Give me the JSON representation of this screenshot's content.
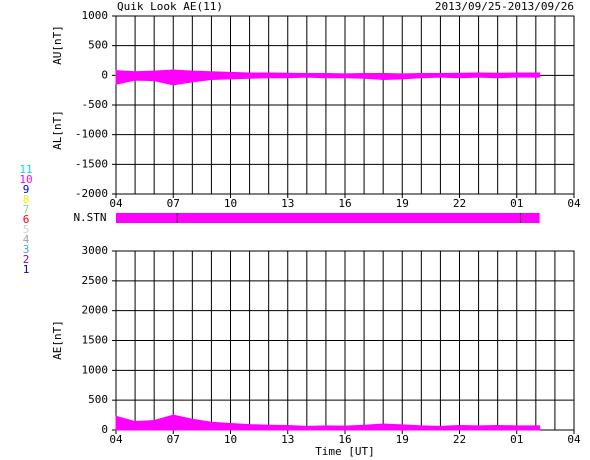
{
  "title": "Quik Look AE(11)",
  "period": "2013/09/25-2013/09/26",
  "legend": [
    {
      "label": "11",
      "color": "#00e0e0"
    },
    {
      "label": "10",
      "color": "#ff00ff"
    },
    {
      "label": "9",
      "color": "#0000ff"
    },
    {
      "label": "8",
      "color": "#f0f000"
    },
    {
      "label": "7",
      "color": "#80e080"
    },
    {
      "label": "6",
      "color": "#ff0000"
    },
    {
      "label": "5",
      "color": "#d0d0d0"
    },
    {
      "label": "4",
      "color": "#a0a0a0"
    },
    {
      "label": "3",
      "color": "#40b0b0"
    },
    {
      "label": "2",
      "color": "#a000a0"
    },
    {
      "label": "1",
      "color": "#0000c0"
    }
  ],
  "stations": {
    "label": "N.STN",
    "color": "#ff00ff",
    "xrange": [
      0,
      22.2
    ],
    "marks": [
      3.2,
      21.2
    ]
  },
  "chart_data": [
    {
      "type": "area",
      "x": [
        0,
        1,
        2,
        3,
        4,
        5,
        6,
        7,
        8,
        9,
        10,
        11,
        12,
        13,
        14,
        15,
        16,
        17,
        18,
        19,
        20,
        21,
        22,
        22.2
      ],
      "series": [
        {
          "name": "AU[nT]",
          "color": "#ff00ff",
          "values": [
            80,
            60,
            70,
            90,
            70,
            60,
            50,
            40,
            40,
            35,
            30,
            30,
            25,
            30,
            30,
            25,
            30,
            30,
            35,
            40,
            35,
            40,
            40,
            40
          ]
        },
        {
          "name": "AL[nT]",
          "color": "#ff00ff",
          "values": [
            -150,
            -80,
            -90,
            -160,
            -110,
            -70,
            -60,
            -50,
            -40,
            -40,
            -30,
            -40,
            -40,
            -50,
            -70,
            -60,
            -40,
            -30,
            -40,
            -30,
            -40,
            -30,
            -30,
            -30
          ]
        }
      ],
      "xlim": [
        0,
        24
      ],
      "xticks": [
        {
          "value": 0,
          "label": "04"
        },
        {
          "value": 3,
          "label": "07"
        },
        {
          "value": 6,
          "label": "10"
        },
        {
          "value": 9,
          "label": "13"
        },
        {
          "value": 12,
          "label": "16"
        },
        {
          "value": 15,
          "label": "19"
        },
        {
          "value": 18,
          "label": "22"
        },
        {
          "value": 21,
          "label": "01"
        },
        {
          "value": 24,
          "label": "04"
        }
      ],
      "xgrid": [
        1,
        2,
        3,
        4,
        5,
        6,
        7,
        8,
        9,
        10,
        11,
        12,
        13,
        14,
        15,
        16,
        17,
        18,
        19,
        20,
        21,
        22,
        23
      ],
      "ylim": [
        -2000,
        1000
      ],
      "yticks": [
        -2000,
        -1500,
        -1000,
        -500,
        0,
        500,
        1000
      ],
      "grid": true
    },
    {
      "type": "area",
      "x": [
        0,
        1,
        2,
        3,
        4,
        5,
        6,
        7,
        8,
        9,
        10,
        11,
        12,
        13,
        14,
        15,
        16,
        17,
        18,
        19,
        20,
        21,
        22,
        22.2
      ],
      "series": [
        {
          "name": "AE[nT]",
          "color": "#ff00ff",
          "values": [
            230,
            140,
            160,
            250,
            180,
            130,
            110,
            90,
            80,
            75,
            60,
            70,
            65,
            80,
            100,
            85,
            70,
            60,
            75,
            70,
            75,
            70,
            70,
            70
          ]
        }
      ],
      "xlabel": "Time [UT]",
      "xlim": [
        0,
        24
      ],
      "xticks": [
        {
          "value": 0,
          "label": "04"
        },
        {
          "value": 3,
          "label": "07"
        },
        {
          "value": 6,
          "label": "10"
        },
        {
          "value": 9,
          "label": "13"
        },
        {
          "value": 12,
          "label": "16"
        },
        {
          "value": 15,
          "label": "19"
        },
        {
          "value": 18,
          "label": "22"
        },
        {
          "value": 21,
          "label": "01"
        },
        {
          "value": 24,
          "label": "04"
        }
      ],
      "xgrid": [
        1,
        2,
        3,
        4,
        5,
        6,
        7,
        8,
        9,
        10,
        11,
        12,
        13,
        14,
        15,
        16,
        17,
        18,
        19,
        20,
        21,
        22,
        23
      ],
      "ylim": [
        0,
        3000
      ],
      "yticks": [
        0,
        500,
        1000,
        1500,
        2000,
        2500,
        3000
      ],
      "grid": true
    }
  ]
}
